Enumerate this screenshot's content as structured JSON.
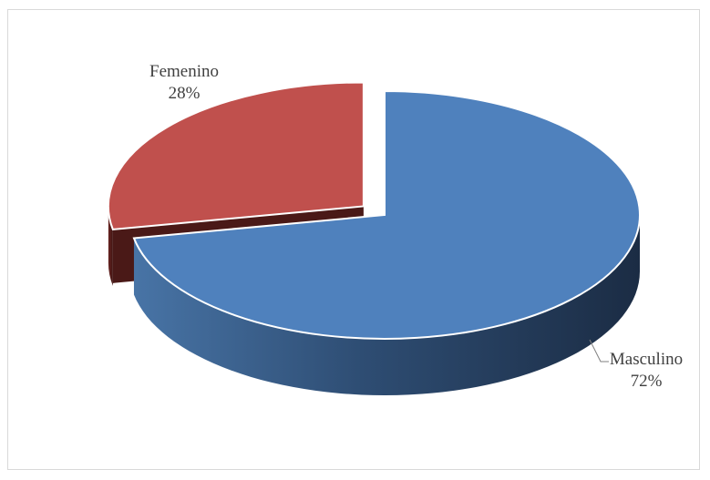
{
  "chart_data": {
    "type": "pie",
    "style": "3d-exploded",
    "title": "",
    "slices": [
      {
        "label": "Masculino",
        "value": 72,
        "value_label": "72%",
        "color": "#4F81BD"
      },
      {
        "label": "Femenino",
        "value": 28,
        "value_label": "28%",
        "color": "#C0504D"
      }
    ],
    "legend": "none",
    "data_labels": "category-and-percent"
  }
}
